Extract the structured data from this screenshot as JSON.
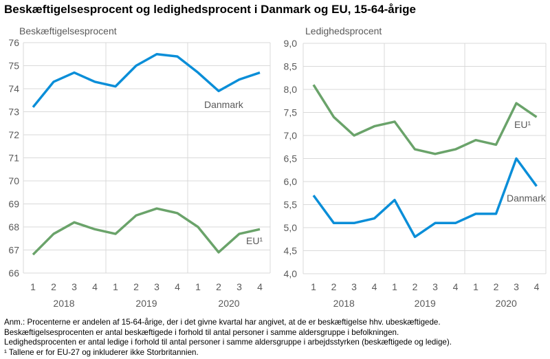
{
  "title": "Beskæftigelsesprocent og ledighedsprocent i Danmark og EU, 15-64-årige",
  "notes": [
    "Anm.: Procenterne er andelen af 15-64-årige, der i det givne kvartal har angivet, at de er beskæftigelse hhv. ubeskæftigede.",
    "Beskæftigelsesprocenten er antal beskæftigede i forhold til antal personer i samme aldersgruppe i befolkningen.",
    "Ledighedsprocenten er antal ledige i forhold til antal personer i samme aldersgruppe i arbejdsstyrken (beskæftigede og ledige).",
    "¹  Tallene er for EU-27 og inkluderer ikke Storbritannien."
  ],
  "colors": {
    "Danmark": "#0a8ed8",
    "EU": "#6aa36a",
    "grid": "#d9d9d9",
    "text": "#595959"
  },
  "chart_data": [
    {
      "type": "line",
      "title": "Beskæftigelsesprocent",
      "categories": [
        "1",
        "2",
        "3",
        "4",
        "1",
        "2",
        "3",
        "4",
        "1",
        "2",
        "3",
        "4"
      ],
      "years": [
        "2018",
        "2019",
        "2020"
      ],
      "ylim": [
        66,
        76
      ],
      "yticks": [
        "66",
        "67",
        "68",
        "69",
        "70",
        "71",
        "72",
        "73",
        "74",
        "75",
        "76"
      ],
      "grid": true,
      "series": [
        {
          "name": "Danmark",
          "values": [
            73.2,
            74.3,
            74.7,
            74.3,
            74.1,
            75.0,
            75.5,
            75.4,
            74.7,
            73.9,
            74.4,
            74.7
          ]
        },
        {
          "name": "EU¹",
          "values": [
            66.8,
            67.7,
            68.2,
            67.9,
            67.7,
            68.5,
            68.8,
            68.6,
            68.0,
            66.9,
            67.7,
            67.9
          ]
        }
      ]
    },
    {
      "type": "line",
      "title": "Ledighedsprocent",
      "categories": [
        "1",
        "2",
        "3",
        "4",
        "1",
        "2",
        "3",
        "4",
        "1",
        "2",
        "3",
        "4"
      ],
      "years": [
        "2018",
        "2019",
        "2020"
      ],
      "ylim": [
        4.0,
        9.0
      ],
      "yticks": [
        "4,0",
        "4,5",
        "5,0",
        "5,5",
        "6,0",
        "6,5",
        "7,0",
        "7,5",
        "8,0",
        "8,5",
        "9,0"
      ],
      "grid": true,
      "series": [
        {
          "name": "EU¹",
          "values": [
            8.1,
            7.4,
            7.0,
            7.2,
            7.3,
            6.7,
            6.6,
            6.7,
            6.9,
            6.8,
            7.7,
            7.4
          ]
        },
        {
          "name": "Danmark",
          "values": [
            5.7,
            5.1,
            5.1,
            5.2,
            5.6,
            4.8,
            5.1,
            5.1,
            5.3,
            5.3,
            6.5,
            5.9
          ]
        }
      ]
    }
  ]
}
